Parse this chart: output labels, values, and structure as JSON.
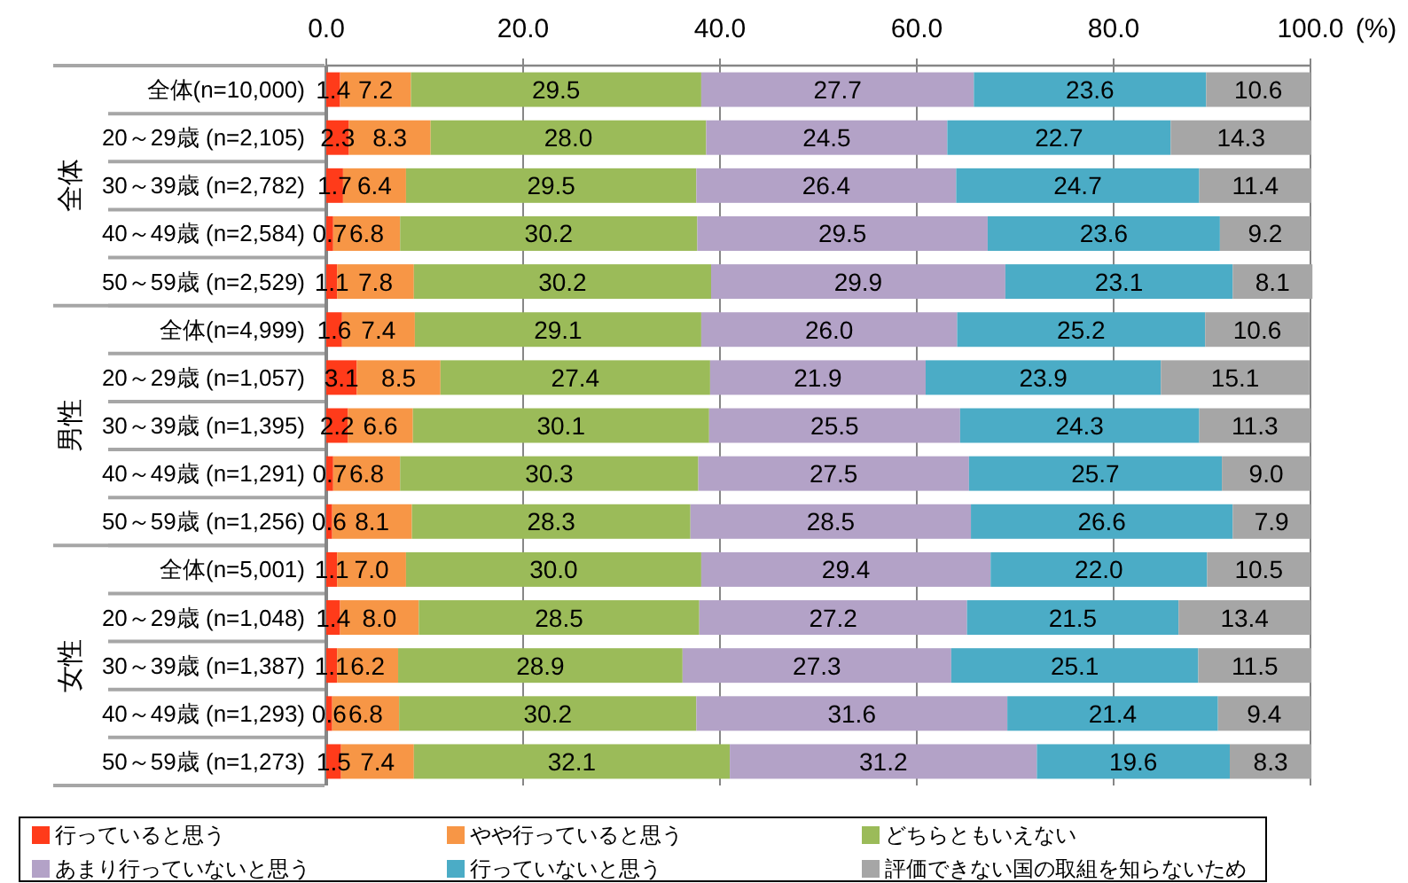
{
  "chart_data": {
    "type": "bar",
    "orientation": "horizontal",
    "stacked": true,
    "categories": [
      "全体(n=10,000)",
      "20～29歳 (n=2,105)",
      "30～39歳 (n=2,782)",
      "40～49歳 (n=2,584)",
      "50～59歳 (n=2,529)",
      "全体(n=4,999)",
      "20～29歳 (n=1,057)",
      "30～39歳 (n=1,395)",
      "40～49歳 (n=1,291)",
      "50～59歳 (n=1,256)",
      "全体(n=5,001)",
      "20～29歳 (n=1,048)",
      "30～39歳 (n=1,387)",
      "40～49歳 (n=1,293)",
      "50～59歳 (n=1,273)"
    ],
    "series": [
      {
        "name": "行っていると思う",
        "color": "#ff3b1a",
        "values": [
          1.4,
          2.3,
          1.7,
          0.7,
          1.1,
          1.6,
          3.1,
          2.2,
          0.7,
          0.6,
          1.1,
          1.4,
          1.1,
          0.6,
          1.5
        ],
        "value_labels": [
          "1.4",
          "2.3",
          "1.7",
          "0.7",
          "1.1",
          "1.6",
          "3.1",
          "2.2",
          "0.7",
          "0.6",
          "1.1",
          "1.4",
          "1.1",
          "0.6",
          "1.5"
        ]
      },
      {
        "name": "やや行っていると思う",
        "color": "#f79646",
        "values": [
          7.2,
          8.3,
          6.4,
          6.8,
          7.8,
          7.4,
          8.5,
          6.6,
          6.8,
          8.1,
          7.0,
          8.0,
          6.2,
          6.8,
          7.4
        ],
        "value_labels": [
          "7.2",
          "8.3",
          "6.4",
          "6.8",
          "7.8",
          "7.4",
          "8.5",
          "6.6",
          "6.8",
          "8.1",
          "7.0",
          "8.0",
          "6.2",
          "6.8",
          "7.4"
        ]
      },
      {
        "name": "どちらともいえない",
        "color": "#9bbb59",
        "values": [
          29.5,
          28.0,
          29.5,
          30.2,
          30.2,
          29.1,
          27.4,
          30.1,
          30.3,
          28.3,
          30.0,
          28.5,
          28.9,
          30.2,
          32.1
        ],
        "value_labels": [
          "29.5",
          "28.0",
          "29.5",
          "30.2",
          "30.2",
          "29.1",
          "27.4",
          "30.1",
          "30.3",
          "28.3",
          "30.0",
          "28.5",
          "28.9",
          "30.2",
          "32.1"
        ]
      },
      {
        "name": "あまり行っていないと思う",
        "color": "#b3a2c7",
        "values": [
          27.7,
          24.5,
          26.4,
          29.5,
          29.9,
          26.0,
          21.9,
          25.5,
          27.5,
          28.5,
          29.4,
          27.2,
          27.3,
          31.6,
          31.2
        ],
        "value_labels": [
          "27.7",
          "24.5",
          "26.4",
          "29.5",
          "29.9",
          "26.0",
          "21.9",
          "25.5",
          "27.5",
          "28.5",
          "29.4",
          "27.2",
          "27.3",
          "31.6",
          "31.2"
        ]
      },
      {
        "name": "行っていないと思う",
        "color": "#4bacc6",
        "values": [
          23.6,
          22.7,
          24.7,
          23.6,
          23.1,
          25.2,
          23.9,
          24.3,
          25.7,
          26.6,
          22.0,
          21.5,
          25.1,
          21.4,
          19.6
        ],
        "value_labels": [
          "23.6",
          "22.7",
          "24.7",
          "23.6",
          "23.1",
          "25.2",
          "23.9",
          "24.3",
          "25.7",
          "26.6",
          "22.0",
          "21.5",
          "25.1",
          "21.4",
          "19.6"
        ]
      },
      {
        "name": "評価できない国の取組を知らないため",
        "color": "#a6a6a6",
        "values": [
          10.6,
          14.3,
          11.4,
          9.2,
          8.1,
          10.6,
          15.1,
          11.3,
          9.0,
          7.9,
          10.5,
          13.4,
          11.5,
          9.4,
          8.3
        ],
        "value_labels": [
          "10.6",
          "14.3",
          "11.4",
          "9.2",
          "8.1",
          "10.6",
          "15.1",
          "11.3",
          "9.0",
          "7.9",
          "10.5",
          "13.4",
          "11.5",
          "9.4",
          "8.3"
        ]
      }
    ],
    "xlim": [
      0,
      100
    ],
    "xticks": [
      {
        "value": 0,
        "label": "0.0"
      },
      {
        "value": 20,
        "label": "20.0"
      },
      {
        "value": 40,
        "label": "40.0"
      },
      {
        "value": 60,
        "label": "60.0"
      },
      {
        "value": 80,
        "label": "80.0"
      },
      {
        "value": 100,
        "label": "100.0"
      }
    ],
    "xlabel": "(%)",
    "annotations": [
      "全体",
      "男性",
      "女性"
    ],
    "grid": "x",
    "legend": "bottom"
  }
}
